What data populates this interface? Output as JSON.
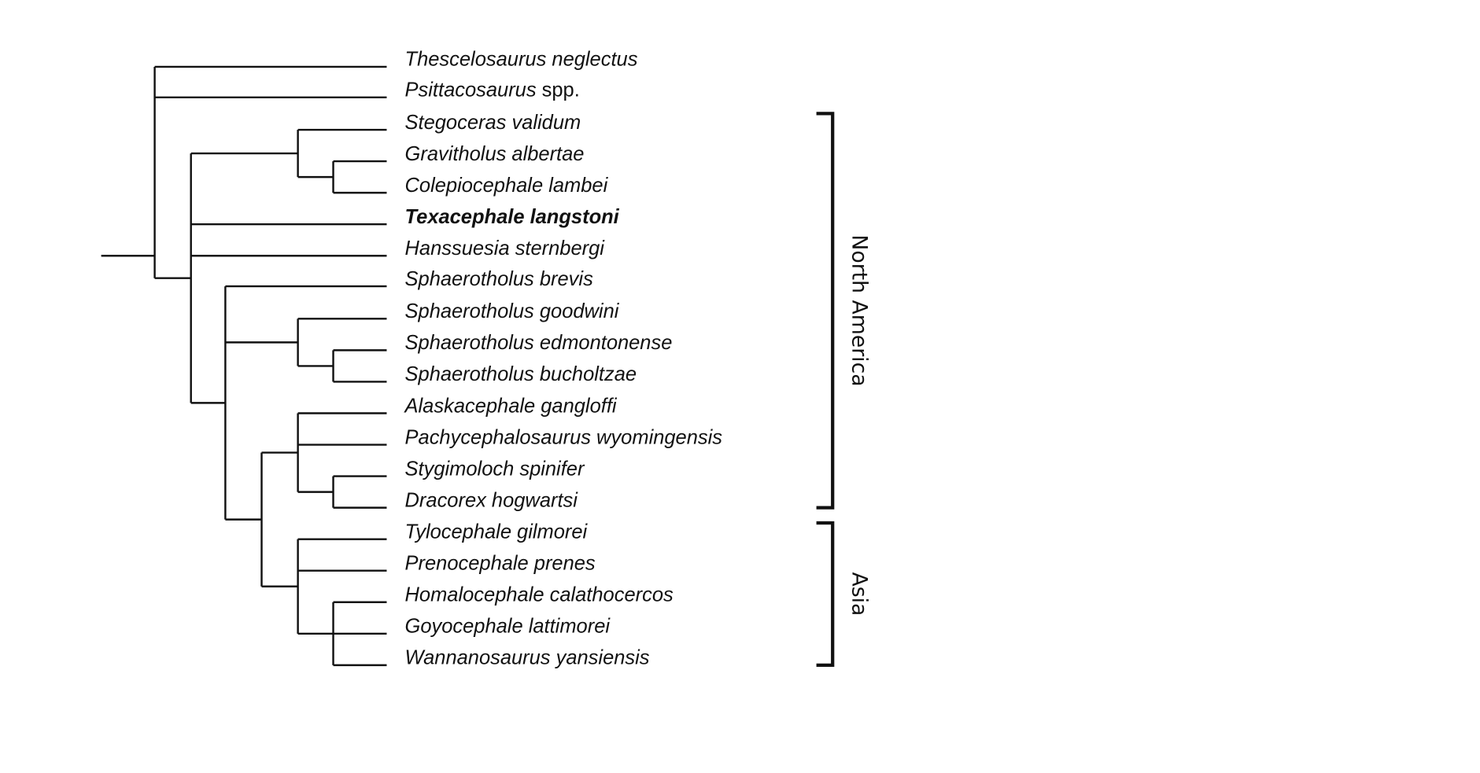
{
  "taxa": [
    {
      "name": "Thescelosaurus neglectus"
    },
    {
      "name": "Psittacosaurus",
      "suffix": " spp."
    },
    {
      "name": "Stegoceras validum"
    },
    {
      "name": "Gravitholus albertae"
    },
    {
      "name": "Colepiocephale lambei"
    },
    {
      "name": "Texacephale langstoni",
      "bold": true
    },
    {
      "name": "Hanssuesia sternbergi"
    },
    {
      "name": "Sphaerotholus brevis"
    },
    {
      "name": "Sphaerotholus goodwini"
    },
    {
      "name": "Sphaerotholus edmontonense"
    },
    {
      "name": "Sphaerotholus bucholtzae"
    },
    {
      "name": "Alaskacephale gangloffi"
    },
    {
      "name": "Pachycephalosaurus wyomingensis"
    },
    {
      "name": "Stygimoloch spinifer"
    },
    {
      "name": "Dracorex hogwartsi"
    },
    {
      "name": "Tylocephale gilmorei"
    },
    {
      "name": "Prenocephale prenes"
    },
    {
      "name": "Homalocephale calathocercos"
    },
    {
      "name": "Goyocephale lattimorei"
    },
    {
      "name": "Wannanosaurus yansiensis"
    }
  ],
  "tree": "(Thescelosaurus neglectus,Psittacosaurus spp.,((Stegoceras validum,(Gravitholus albertae,Colepiocephale lambei)),Texacephale langstoni,Hanssuesia sternbergi,(Sphaerotholus brevis,(Sphaerotholus goodwini,(Sphaerotholus edmontonense,Sphaerotholus bucholtzae)),((Alaskacephale gangloffi,Pachycephalosaurus wyomingensis,(Stygimoloch spinifer,Dracorex hogwartsi)),(Tylocephale gilmorei,Prenocephale prenes,(Homalocephale calathocercos,Goyocephale lattimorei,Wannanosaurus yansiensis))))))",
  "regions": [
    {
      "label": "North America",
      "from": 2,
      "to": 14
    },
    {
      "label": "Asia",
      "from": 15,
      "to": 19
    }
  ]
}
